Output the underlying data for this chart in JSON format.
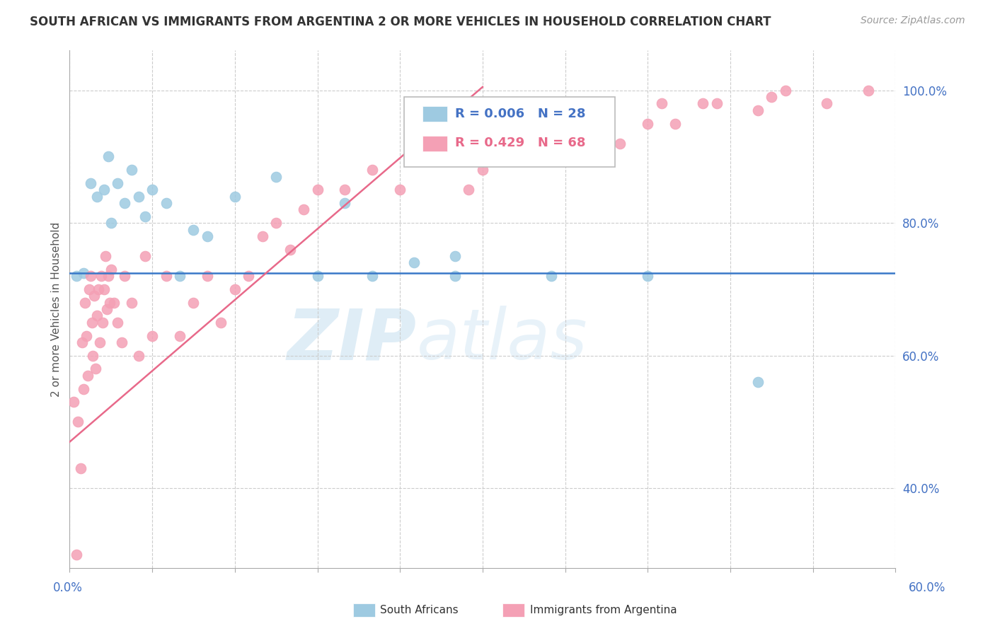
{
  "title": "SOUTH AFRICAN VS IMMIGRANTS FROM ARGENTINA 2 OR MORE VEHICLES IN HOUSEHOLD CORRELATION CHART",
  "source": "Source: ZipAtlas.com",
  "xmin": 0.0,
  "xmax": 60.0,
  "ymin": 28.0,
  "ymax": 106.0,
  "yticks": [
    40.0,
    60.0,
    80.0,
    100.0
  ],
  "legend_r1": "R = 0.006",
  "legend_n1": "N = 28",
  "legend_r2": "R = 0.429",
  "legend_n2": "N = 68",
  "color_sa": "#9ecae1",
  "color_arg": "#f4a0b5",
  "color_sa_line": "#3878c8",
  "color_arg_line": "#e8698a",
  "watermark_zip": "ZIP",
  "watermark_atlas": "atlas",
  "label_sa": "South Africans",
  "label_arg": "Immigrants from Argentina",
  "sa_x": [
    0.5,
    1.0,
    1.5,
    2.0,
    2.5,
    2.8,
    3.0,
    3.5,
    4.0,
    4.5,
    5.0,
    5.5,
    6.0,
    7.0,
    8.0,
    9.0,
    10.0,
    12.0,
    15.0,
    18.0,
    20.0,
    22.0,
    25.0,
    28.0,
    35.0,
    42.0,
    50.0,
    28.0
  ],
  "sa_y": [
    72.0,
    72.5,
    86.0,
    84.0,
    85.0,
    90.0,
    80.0,
    86.0,
    83.0,
    88.0,
    84.0,
    81.0,
    85.0,
    83.0,
    72.0,
    79.0,
    78.0,
    84.0,
    87.0,
    72.0,
    83.0,
    72.0,
    74.0,
    72.0,
    72.0,
    72.0,
    56.0,
    75.0
  ],
  "arg_x": [
    0.3,
    0.5,
    0.6,
    0.8,
    0.9,
    1.0,
    1.1,
    1.2,
    1.3,
    1.4,
    1.5,
    1.6,
    1.7,
    1.8,
    1.9,
    2.0,
    2.1,
    2.2,
    2.3,
    2.4,
    2.5,
    2.6,
    2.7,
    2.8,
    2.9,
    3.0,
    3.2,
    3.5,
    3.8,
    4.0,
    4.5,
    5.0,
    5.5,
    6.0,
    7.0,
    8.0,
    9.0,
    10.0,
    11.0,
    12.0,
    13.0,
    14.0,
    15.0,
    16.0,
    17.0,
    18.0,
    20.0,
    22.0,
    24.0,
    26.0,
    28.0,
    29.0,
    30.0,
    32.0,
    34.0,
    36.0,
    37.0,
    40.0,
    42.0,
    43.0,
    44.0,
    46.0,
    47.0,
    50.0,
    51.0,
    52.0,
    55.0,
    58.0
  ],
  "arg_y": [
    53.0,
    30.0,
    50.0,
    43.0,
    62.0,
    55.0,
    68.0,
    63.0,
    57.0,
    70.0,
    72.0,
    65.0,
    60.0,
    69.0,
    58.0,
    66.0,
    70.0,
    62.0,
    72.0,
    65.0,
    70.0,
    75.0,
    67.0,
    72.0,
    68.0,
    73.0,
    68.0,
    65.0,
    62.0,
    72.0,
    68.0,
    60.0,
    75.0,
    63.0,
    72.0,
    63.0,
    68.0,
    72.0,
    65.0,
    70.0,
    72.0,
    78.0,
    80.0,
    76.0,
    82.0,
    85.0,
    85.0,
    88.0,
    85.0,
    90.0,
    92.0,
    85.0,
    88.0,
    90.0,
    95.0,
    92.0,
    95.0,
    92.0,
    95.0,
    98.0,
    95.0,
    98.0,
    98.0,
    97.0,
    99.0,
    100.0,
    98.0,
    100.0
  ],
  "sa_line_x": [
    0.0,
    60.0
  ],
  "sa_line_y": [
    72.5,
    72.5
  ],
  "arg_line_x0": 0.0,
  "arg_line_y0": 47.0,
  "arg_line_x1": 30.0,
  "arg_line_y1": 100.5
}
